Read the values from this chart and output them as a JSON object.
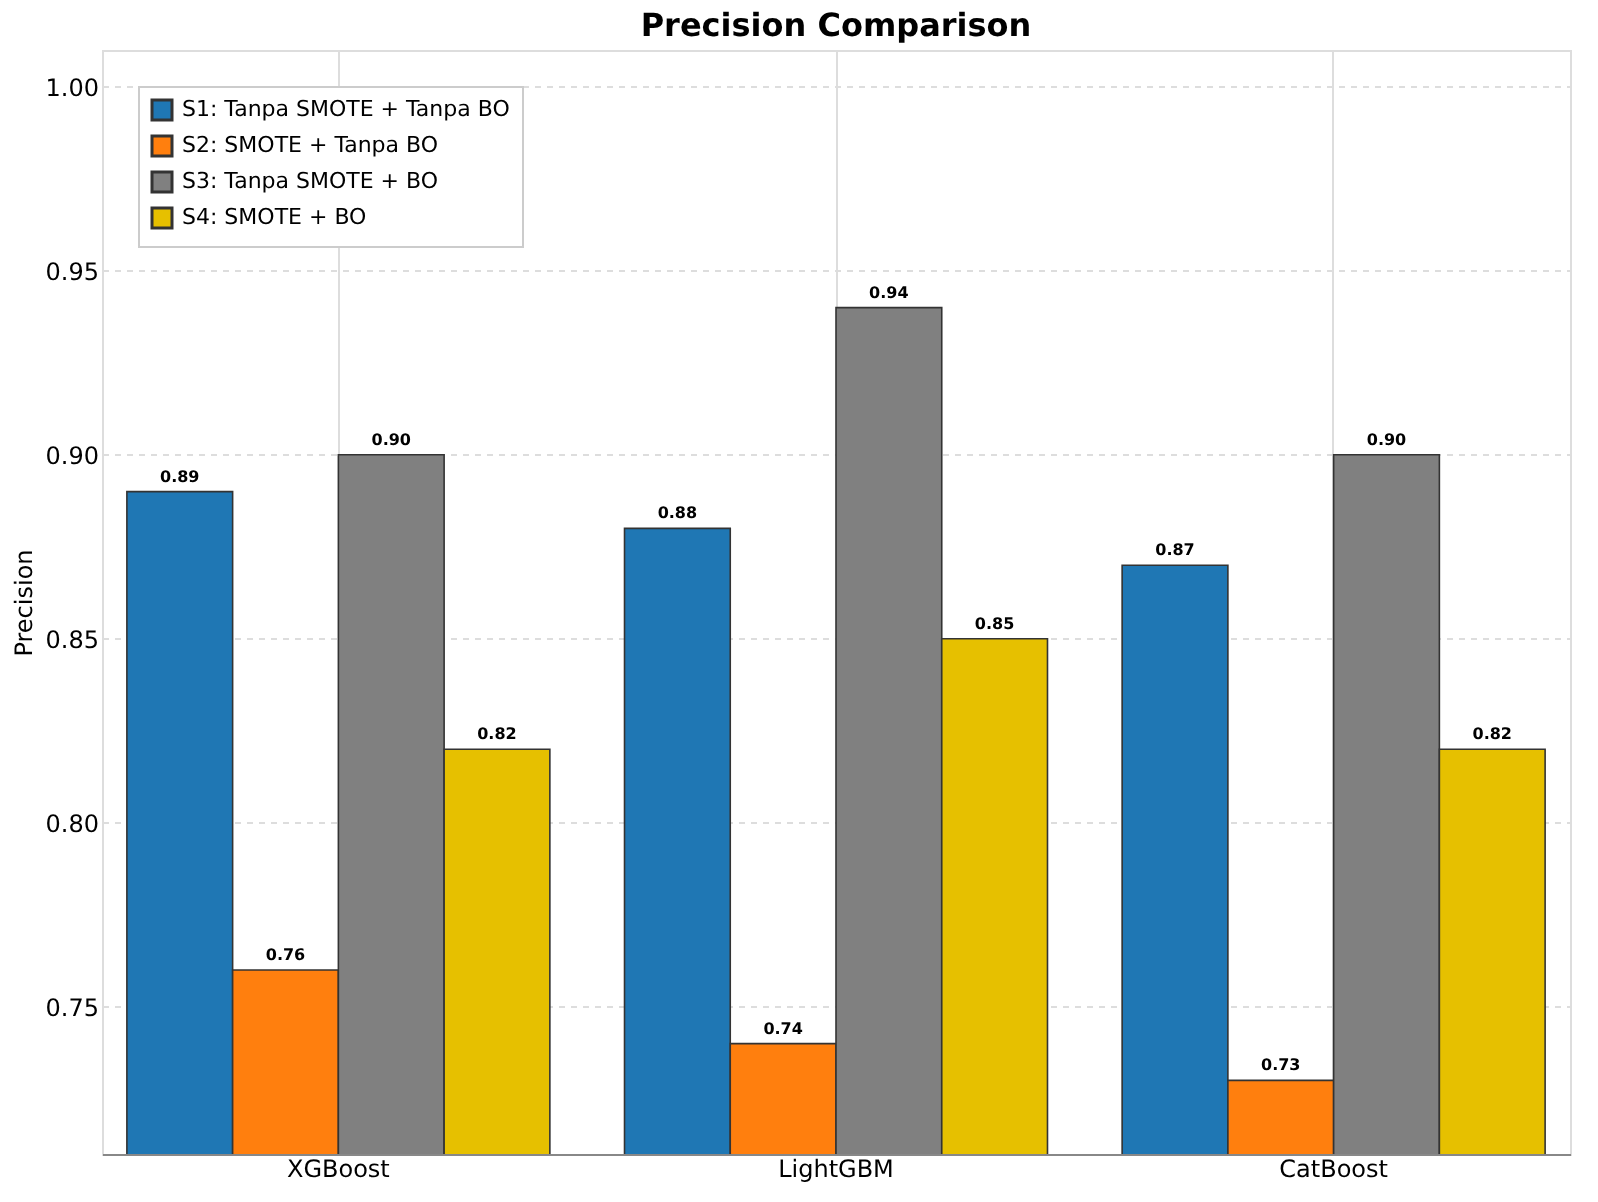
{
  "chart_data": {
    "type": "bar",
    "title": "Precision Comparison",
    "ylabel": "Precision",
    "categories": [
      "XGBoost",
      "LightGBM",
      "CatBoost"
    ],
    "series": [
      {
        "name": "S1: Tanpa SMOTE + Tanpa BO",
        "color": "#1f77b4",
        "values": [
          0.89,
          0.88,
          0.87
        ],
        "value_labels": [
          "0.89",
          "0.88",
          "0.87"
        ]
      },
      {
        "name": "S2: SMOTE + Tanpa BO",
        "color": "#ff7f0e",
        "values": [
          0.76,
          0.74,
          0.73
        ],
        "value_labels": [
          "0.76",
          "0.74",
          "0.73"
        ]
      },
      {
        "name": "S3: Tanpa SMOTE + BO",
        "color": "#808080",
        "values": [
          0.9,
          0.94,
          0.9
        ],
        "value_labels": [
          "0.90",
          "0.94",
          "0.90"
        ]
      },
      {
        "name": "S4: SMOTE + BO",
        "color": "#e6c000",
        "values": [
          0.82,
          0.85,
          0.82
        ],
        "value_labels": [
          "0.82",
          "0.85",
          "0.82"
        ]
      }
    ],
    "ylim": [
      0.71,
      1.01
    ],
    "yticks": [
      {
        "value": 0.75,
        "label": "0.75"
      },
      {
        "value": 0.8,
        "label": "0.80"
      },
      {
        "value": 0.85,
        "label": "0.85"
      },
      {
        "value": 0.9,
        "label": "0.90"
      },
      {
        "value": 0.95,
        "label": "0.95"
      },
      {
        "value": 1.0,
        "label": "1.00"
      }
    ],
    "grid": true,
    "legend": "top left"
  }
}
